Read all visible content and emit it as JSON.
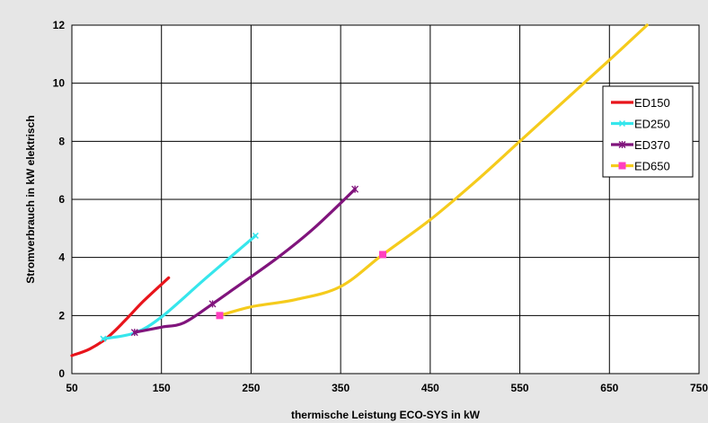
{
  "chart_data": {
    "type": "line",
    "title": "",
    "xlabel": "thermische Leistung ECO-SYS in kW",
    "ylabel": "Stromverbrauch in kW elektrisch",
    "xlim": [
      50,
      750
    ],
    "ylim": [
      0,
      12
    ],
    "xticks": [
      "50",
      "150",
      "250",
      "350",
      "450",
      "550",
      "650",
      "750"
    ],
    "yticks": [
      "0",
      "2",
      "4",
      "6",
      "8",
      "10",
      "12"
    ],
    "grid": true,
    "legend_position": "top-right",
    "series": [
      {
        "name": "ED150",
        "color": "#e8141b",
        "marker": "none",
        "values": [
          [
            50,
            0.62
          ],
          [
            70,
            0.85
          ],
          [
            90,
            1.25
          ],
          [
            110,
            1.85
          ],
          [
            130,
            2.5
          ],
          [
            158,
            3.3
          ]
        ],
        "markers": []
      },
      {
        "name": "ED250",
        "color": "#36e6ec",
        "marker": "x",
        "values": [
          [
            85,
            1.2
          ],
          [
            120,
            1.4
          ],
          [
            150,
            1.95
          ],
          [
            200,
            3.3
          ],
          [
            255,
            4.75
          ]
        ],
        "markers": [
          [
            85,
            1.2
          ],
          [
            255,
            4.75
          ]
        ]
      },
      {
        "name": "ED370",
        "color": "#80147c",
        "marker": "star",
        "values": [
          [
            120,
            1.42
          ],
          [
            150,
            1.6
          ],
          [
            175,
            1.75
          ],
          [
            207,
            2.4
          ],
          [
            230,
            2.9
          ],
          [
            280,
            4.0
          ],
          [
            320,
            5.0
          ],
          [
            366,
            6.35
          ]
        ],
        "markers": [
          [
            120,
            1.42
          ],
          [
            207,
            2.4
          ],
          [
            366,
            6.35
          ]
        ]
      },
      {
        "name": "ED650",
        "color": "#f5cb1c",
        "marker": "square",
        "values": [
          [
            215,
            2.0
          ],
          [
            250,
            2.3
          ],
          [
            300,
            2.55
          ],
          [
            350,
            3.0
          ],
          [
            397,
            4.1
          ],
          [
            450,
            5.3
          ],
          [
            500,
            6.6
          ],
          [
            550,
            8.0
          ],
          [
            600,
            9.4
          ],
          [
            650,
            10.8
          ],
          [
            692,
            12.0
          ]
        ],
        "markers": [
          [
            215,
            2.0
          ],
          [
            397,
            4.1
          ]
        ]
      }
    ]
  }
}
